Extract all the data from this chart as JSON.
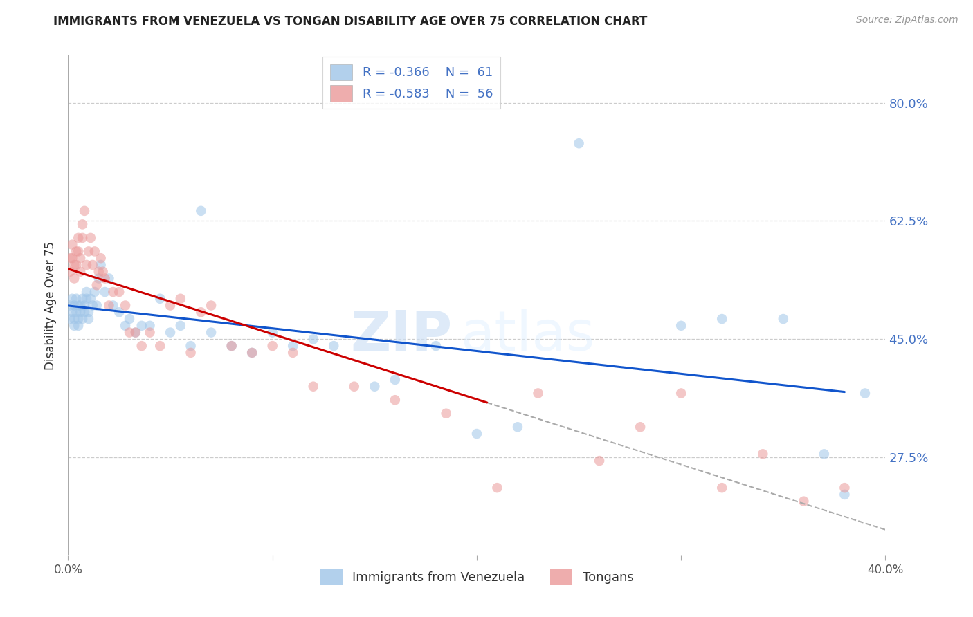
{
  "title": "IMMIGRANTS FROM VENEZUELA VS TONGAN DISABILITY AGE OVER 75 CORRELATION CHART",
  "source": "Source: ZipAtlas.com",
  "xlabel_bottom": "Immigrants from Venezuela",
  "xlabel_right_label": "Tongans",
  "ylabel": "Disability Age Over 75",
  "x_min": 0.0,
  "x_max": 0.4,
  "y_min": 0.13,
  "y_max": 0.87,
  "y_ticks": [
    0.275,
    0.45,
    0.625,
    0.8
  ],
  "y_tick_labels": [
    "27.5%",
    "45.0%",
    "62.5%",
    "80.0%"
  ],
  "legend_R1": "R = -0.366",
  "legend_N1": "N =  61",
  "legend_R2": "R = -0.583",
  "legend_N2": "N =  56",
  "blue_color": "#9fc5e8",
  "pink_color": "#ea9999",
  "line_blue": "#1155cc",
  "line_pink": "#cc0000",
  "watermark_zip": "ZIP",
  "watermark_atlas": "atlas",
  "blue_x": [
    0.001,
    0.001,
    0.002,
    0.002,
    0.003,
    0.003,
    0.003,
    0.004,
    0.004,
    0.005,
    0.005,
    0.005,
    0.006,
    0.006,
    0.007,
    0.007,
    0.008,
    0.008,
    0.009,
    0.009,
    0.01,
    0.01,
    0.011,
    0.012,
    0.013,
    0.014,
    0.015,
    0.016,
    0.018,
    0.02,
    0.022,
    0.025,
    0.028,
    0.03,
    0.033,
    0.036,
    0.04,
    0.045,
    0.05,
    0.055,
    0.06,
    0.065,
    0.07,
    0.08,
    0.09,
    0.1,
    0.11,
    0.12,
    0.13,
    0.15,
    0.16,
    0.18,
    0.2,
    0.22,
    0.25,
    0.3,
    0.32,
    0.35,
    0.37,
    0.38,
    0.39
  ],
  "blue_y": [
    0.5,
    0.48,
    0.51,
    0.49,
    0.5,
    0.48,
    0.47,
    0.49,
    0.51,
    0.5,
    0.48,
    0.47,
    0.5,
    0.49,
    0.51,
    0.48,
    0.5,
    0.49,
    0.52,
    0.51,
    0.49,
    0.48,
    0.51,
    0.5,
    0.52,
    0.5,
    0.54,
    0.56,
    0.52,
    0.54,
    0.5,
    0.49,
    0.47,
    0.48,
    0.46,
    0.47,
    0.47,
    0.51,
    0.46,
    0.47,
    0.44,
    0.64,
    0.46,
    0.44,
    0.43,
    0.46,
    0.44,
    0.45,
    0.44,
    0.38,
    0.39,
    0.44,
    0.31,
    0.32,
    0.74,
    0.47,
    0.48,
    0.48,
    0.28,
    0.22,
    0.37
  ],
  "pink_x": [
    0.001,
    0.001,
    0.002,
    0.002,
    0.003,
    0.003,
    0.004,
    0.004,
    0.005,
    0.005,
    0.006,
    0.006,
    0.007,
    0.007,
    0.008,
    0.009,
    0.01,
    0.011,
    0.012,
    0.013,
    0.014,
    0.015,
    0.016,
    0.017,
    0.018,
    0.02,
    0.022,
    0.025,
    0.028,
    0.03,
    0.033,
    0.036,
    0.04,
    0.045,
    0.05,
    0.055,
    0.06,
    0.065,
    0.07,
    0.08,
    0.09,
    0.1,
    0.11,
    0.12,
    0.14,
    0.16,
    0.185,
    0.21,
    0.23,
    0.26,
    0.28,
    0.3,
    0.32,
    0.34,
    0.36,
    0.38
  ],
  "pink_y": [
    0.57,
    0.55,
    0.59,
    0.57,
    0.56,
    0.54,
    0.58,
    0.56,
    0.6,
    0.58,
    0.57,
    0.55,
    0.62,
    0.6,
    0.64,
    0.56,
    0.58,
    0.6,
    0.56,
    0.58,
    0.53,
    0.55,
    0.57,
    0.55,
    0.54,
    0.5,
    0.52,
    0.52,
    0.5,
    0.46,
    0.46,
    0.44,
    0.46,
    0.44,
    0.5,
    0.51,
    0.43,
    0.49,
    0.5,
    0.44,
    0.43,
    0.44,
    0.43,
    0.38,
    0.38,
    0.36,
    0.34,
    0.23,
    0.37,
    0.27,
    0.32,
    0.37,
    0.23,
    0.28,
    0.21,
    0.23
  ]
}
